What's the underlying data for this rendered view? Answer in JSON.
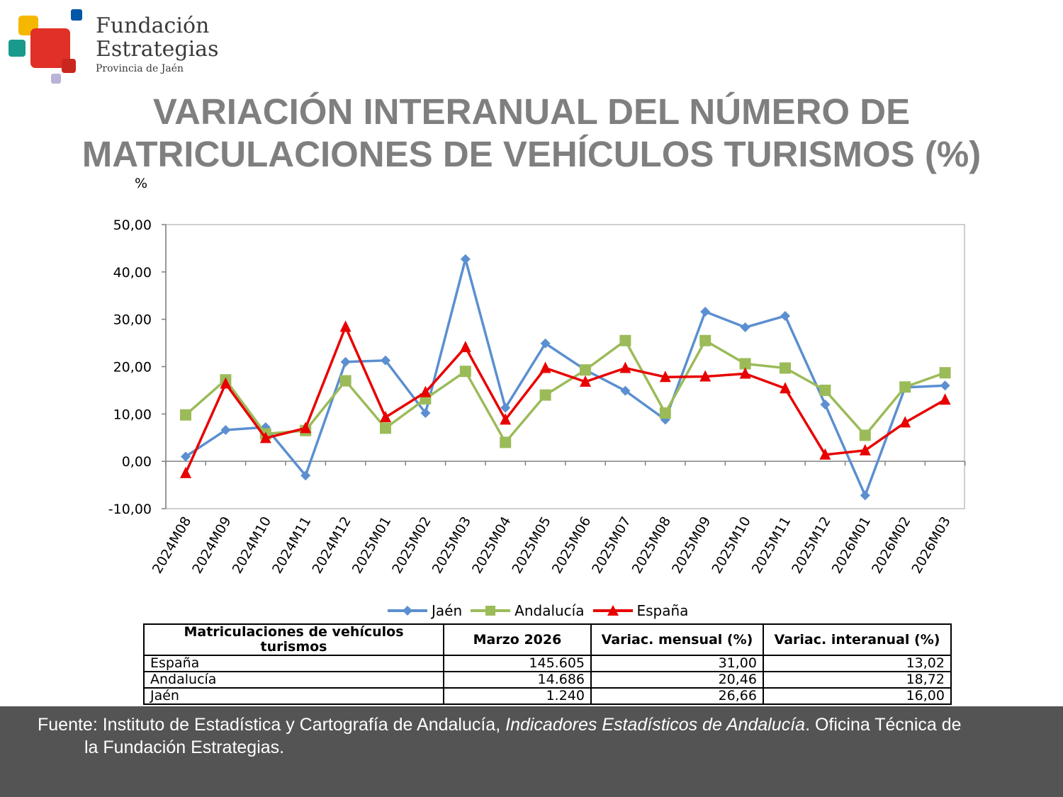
{
  "logo": {
    "line1": "Fundación",
    "line2": "Estrategias",
    "line3": "Provincia de Jaén",
    "colors": [
      "#f5b800",
      "#1a9a8a",
      "#e03027",
      "#0057a8",
      "#b9b3d9"
    ]
  },
  "title": {
    "line1": "VARIACIÓN INTERANUAL DEL NÚMERO DE",
    "line2": "MATRICULACIONES DE VEHÍCULOS TURISMOS (%)"
  },
  "chart_data": {
    "type": "line",
    "ylabel": "%",
    "ylim": [
      -10,
      50
    ],
    "yticks": [
      "-10,00",
      "0,00",
      "10,00",
      "20,00",
      "30,00",
      "40,00",
      "50,00"
    ],
    "grid": false,
    "legend_position": "bottom",
    "categories": [
      "2024M08",
      "2024M09",
      "2024M10",
      "2024M11",
      "2024M12",
      "2025M01",
      "2025M02",
      "2025M03",
      "2025M04",
      "2025M05",
      "2025M06",
      "2025M07",
      "2025M08",
      "2025M09",
      "2025M10",
      "2025M11",
      "2025M12",
      "2026M01",
      "2026M02",
      "2026M03"
    ],
    "series": [
      {
        "name": "Jaén",
        "color": "#5b8fd0",
        "marker": "diamond",
        "values": [
          1.0,
          6.6,
          7.2,
          -3.0,
          21.0,
          21.3,
          10.2,
          42.7,
          11.3,
          24.9,
          19.3,
          14.9,
          8.8,
          31.6,
          28.3,
          30.7,
          12.0,
          -7.2,
          15.6,
          16.0
        ]
      },
      {
        "name": "Andalucía",
        "color": "#9bbb59",
        "marker": "square",
        "values": [
          9.8,
          17.2,
          5.8,
          6.5,
          17.0,
          7.0,
          13.2,
          19.0,
          4.0,
          14.0,
          19.3,
          25.5,
          10.2,
          25.5,
          20.6,
          19.7,
          15.0,
          5.5,
          15.7,
          18.7
        ]
      },
      {
        "name": "España",
        "color": "#e80000",
        "marker": "triangle",
        "values": [
          -2.5,
          16.4,
          4.9,
          7.0,
          28.4,
          9.3,
          14.6,
          24.1,
          8.8,
          19.7,
          16.8,
          19.7,
          17.8,
          17.9,
          18.5,
          15.4,
          1.4,
          2.3,
          8.2,
          13.0
        ]
      }
    ]
  },
  "table": {
    "headers": [
      "Matriculaciones de vehículos turismos",
      "Marzo 2026",
      "Variac. mensual (%)",
      "Variac. interanual (%)"
    ],
    "rows": [
      [
        "España",
        "145.605",
        "31,00",
        "13,02"
      ],
      [
        "Andalucía",
        "14.686",
        "20,46",
        "18,72"
      ],
      [
        "Jaén",
        "1.240",
        "26,66",
        "16,00"
      ]
    ]
  },
  "footer": {
    "prefix": "Fuente: Instituto de Estadística y Cartografía de Andalucía,",
    "italic": "Indicadores Estadísticos de Andalucía",
    "suffix": ". Oficina Técnica de",
    "line2": "la Fundación Estrategias."
  }
}
